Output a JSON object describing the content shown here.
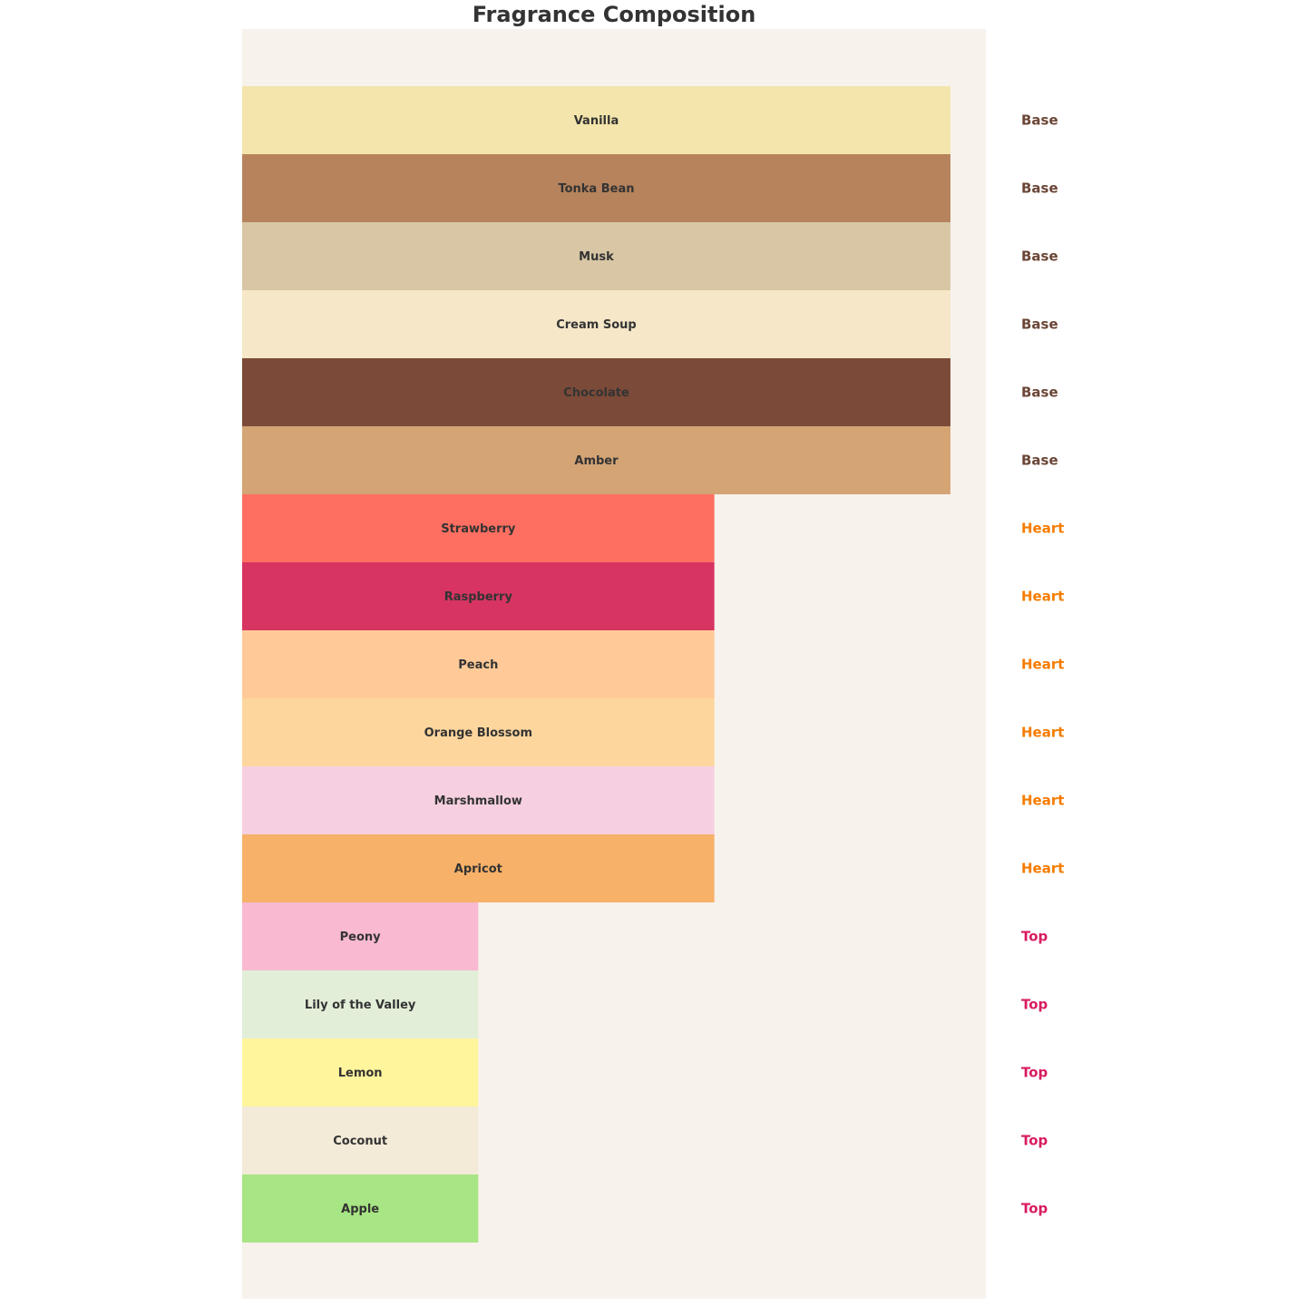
{
  "chart_data": {
    "type": "bar",
    "orientation": "horizontal",
    "title": "Fragrance Composition",
    "xlabel": "",
    "ylabel": "",
    "xlim": [
      0,
      3.15
    ],
    "grid": false,
    "background_color": "#F7F2EC",
    "tier_colors": {
      "Base": "#6B4636",
      "Heart": "#F57C00",
      "Top": "#D81B60"
    },
    "bars": [
      {
        "label": "Vanilla",
        "tier": "Base",
        "value": 3,
        "color": "#F3E5AB"
      },
      {
        "label": "Tonka Bean",
        "tier": "Base",
        "value": 3,
        "color": "#B6835C"
      },
      {
        "label": "Musk",
        "tier": "Base",
        "value": 3,
        "color": "#D8C6A5"
      },
      {
        "label": "Cream Soup",
        "tier": "Base",
        "value": 3,
        "color": "#F5E7C8"
      },
      {
        "label": "Chocolate",
        "tier": "Base",
        "value": 3,
        "color": "#7B4A38"
      },
      {
        "label": "Amber",
        "tier": "Base",
        "value": 3,
        "color": "#D4A475"
      },
      {
        "label": "Strawberry",
        "tier": "Heart",
        "value": 2,
        "color": "#FF6F61"
      },
      {
        "label": "Raspberry",
        "tier": "Heart",
        "value": 2,
        "color": "#D73462"
      },
      {
        "label": "Peach",
        "tier": "Heart",
        "value": 2,
        "color": "#FFCA98"
      },
      {
        "label": "Orange Blossom",
        "tier": "Heart",
        "value": 2,
        "color": "#FDD69E"
      },
      {
        "label": "Marshmallow",
        "tier": "Heart",
        "value": 2,
        "color": "#F6D0E0"
      },
      {
        "label": "Apricot",
        "tier": "Heart",
        "value": 2,
        "color": "#F7B168"
      },
      {
        "label": "Peony",
        "tier": "Top",
        "value": 1,
        "color": "#F8B9D1"
      },
      {
        "label": "Lily of the Valley",
        "tier": "Top",
        "value": 1,
        "color": "#E3EED9"
      },
      {
        "label": "Lemon",
        "tier": "Top",
        "value": 1,
        "color": "#FFF59D"
      },
      {
        "label": "Coconut",
        "tier": "Top",
        "value": 1,
        "color": "#F3EAD8"
      },
      {
        "label": "Apple",
        "tier": "Top",
        "value": 1,
        "color": "#A8E584"
      }
    ]
  }
}
